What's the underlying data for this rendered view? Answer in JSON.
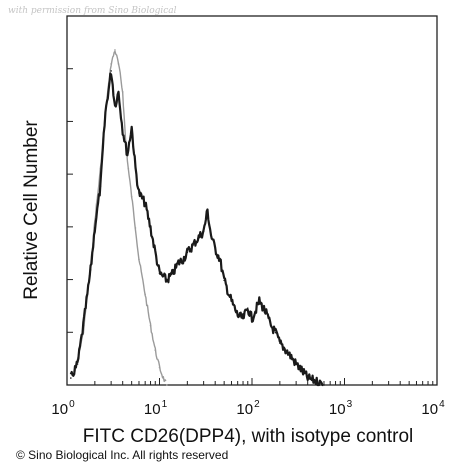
{
  "watermark": "with permission from Sino Biological",
  "copyright": "© Sino Biological Inc. All rights reserved",
  "chart_data": {
    "type": "area",
    "xlabel": "FITC CD26(DPP4), with isotype control",
    "ylabel": "Relative Cell Number",
    "x_scale": "log",
    "xlim": [
      1,
      10000
    ],
    "ylim": [
      0,
      1
    ],
    "x_ticks": [
      {
        "base": "10",
        "exp": "0",
        "value": 1
      },
      {
        "base": "10",
        "exp": "1",
        "value": 10
      },
      {
        "base": "10",
        "exp": "2",
        "value": 100
      },
      {
        "base": "10",
        "exp": "3",
        "value": 1000
      },
      {
        "base": "10",
        "exp": "4",
        "value": 10000
      }
    ],
    "series": [
      {
        "color": "#1a1a1a",
        "x": [
          1.1,
          1.3,
          1.5,
          1.8,
          2.0,
          2.3,
          2.6,
          3.0,
          3.3,
          3.6,
          4.0,
          4.5,
          5.0,
          5.5,
          6.0,
          7.0,
          8.0,
          9.0,
          10,
          12,
          14,
          16,
          18,
          20,
          23,
          26,
          30,
          33,
          36,
          40,
          45,
          50,
          60,
          70,
          80,
          90,
          100,
          120,
          140,
          160,
          180,
          200,
          250,
          300,
          350,
          400,
          500,
          600
        ],
        "y": [
          0.02,
          0.06,
          0.17,
          0.33,
          0.45,
          0.57,
          0.78,
          0.9,
          0.8,
          0.84,
          0.73,
          0.66,
          0.74,
          0.62,
          0.55,
          0.52,
          0.45,
          0.38,
          0.32,
          0.3,
          0.32,
          0.35,
          0.36,
          0.38,
          0.4,
          0.42,
          0.44,
          0.5,
          0.43,
          0.39,
          0.36,
          0.3,
          0.24,
          0.2,
          0.19,
          0.22,
          0.19,
          0.24,
          0.21,
          0.17,
          0.15,
          0.12,
          0.09,
          0.06,
          0.04,
          0.02,
          0.01,
          0.0
        ]
      },
      {
        "color": "#9a9a9a",
        "x": [
          1.2,
          1.5,
          1.8,
          2.0,
          2.3,
          2.6,
          3.0,
          3.3,
          3.6,
          4.0,
          4.3,
          4.6,
          5.0,
          5.5,
          6.0,
          7.0,
          8.0,
          9.0,
          10,
          11,
          12
        ],
        "y": [
          0.03,
          0.15,
          0.34,
          0.47,
          0.62,
          0.78,
          0.92,
          0.96,
          0.92,
          0.84,
          0.7,
          0.62,
          0.54,
          0.45,
          0.36,
          0.26,
          0.17,
          0.1,
          0.05,
          0.02,
          0.0
        ]
      }
    ]
  }
}
